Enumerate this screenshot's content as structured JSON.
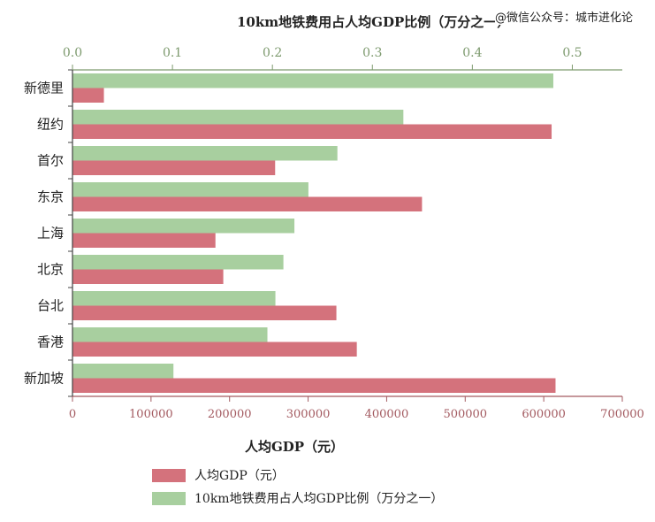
{
  "watermark": "@微信公众号：城市进化论",
  "chart_data": {
    "type": "bar",
    "orientation": "horizontal",
    "categories": [
      "新德里",
      "纽约",
      "首尔",
      "东京",
      "上海",
      "北京",
      "台北",
      "香港",
      "新加坡"
    ],
    "series": [
      {
        "name": "10km地铁费用占人均GDP比例（万分之一）",
        "axis": "top",
        "color": "#a8cf9f",
        "values": [
          0.481,
          0.331,
          0.265,
          0.236,
          0.222,
          0.211,
          0.203,
          0.195,
          0.101
        ]
      },
      {
        "name": "人均GDP（元）",
        "axis": "bottom",
        "color": "#d4727c",
        "values": [
          40000,
          610000,
          258000,
          445000,
          182000,
          192000,
          336000,
          362000,
          615000
        ]
      }
    ],
    "x_top": {
      "label": "10km地铁费用占人均GDP比例（万分之一）",
      "range": [
        0,
        0.55
      ],
      "ticks": [
        "0.0",
        "0.1",
        "0.2",
        "0.3",
        "0.4",
        "0.5"
      ],
      "tick_values": [
        0,
        0.1,
        0.2,
        0.3,
        0.4,
        0.5
      ],
      "color": "#7d9a6e"
    },
    "x_bottom": {
      "label": "人均GDP（元）",
      "range": [
        0,
        700000
      ],
      "ticks": [
        "0",
        "100000",
        "200000",
        "300000",
        "400000",
        "500000",
        "600000",
        "700000"
      ],
      "tick_values": [
        0,
        100000,
        200000,
        300000,
        400000,
        500000,
        600000,
        700000
      ],
      "color": "#a35a60"
    },
    "legend": {
      "position": "bottom",
      "items": [
        {
          "label": "人均GDP（元）",
          "color": "#d4727c"
        },
        {
          "label": "10km地铁费用占人均GDP比例（万分之一）",
          "color": "#a8cf9f"
        }
      ]
    },
    "grid": false
  }
}
